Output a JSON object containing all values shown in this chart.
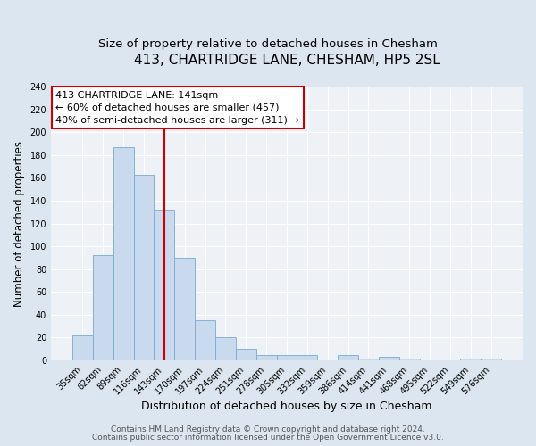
{
  "title": "413, CHARTRIDGE LANE, CHESHAM, HP5 2SL",
  "subtitle": "Size of property relative to detached houses in Chesham",
  "xlabel": "Distribution of detached houses by size in Chesham",
  "ylabel": "Number of detached properties",
  "bar_labels": [
    "35sqm",
    "62sqm",
    "89sqm",
    "116sqm",
    "143sqm",
    "170sqm",
    "197sqm",
    "224sqm",
    "251sqm",
    "278sqm",
    "305sqm",
    "332sqm",
    "359sqm",
    "386sqm",
    "414sqm",
    "441sqm",
    "468sqm",
    "495sqm",
    "522sqm",
    "549sqm",
    "576sqm"
  ],
  "bar_values": [
    22,
    92,
    187,
    163,
    132,
    90,
    35,
    20,
    10,
    5,
    5,
    5,
    0,
    5,
    2,
    3,
    2,
    0,
    0,
    2,
    2
  ],
  "bar_color": "#c9d9ee",
  "bar_edge_color": "#7aaad0",
  "bar_width": 1.0,
  "vline_x": 4,
  "vline_color": "#cc0000",
  "ylim": [
    0,
    240
  ],
  "yticks": [
    0,
    20,
    40,
    60,
    80,
    100,
    120,
    140,
    160,
    180,
    200,
    220,
    240
  ],
  "annotation_title": "413 CHARTRIDGE LANE: 141sqm",
  "annotation_line1": "← 60% of detached houses are smaller (457)",
  "annotation_line2": "40% of semi-detached houses are larger (311) →",
  "annotation_box_color": "#ffffff",
  "annotation_border_color": "#cc0000",
  "bg_color": "#dce6f0",
  "plot_bg_color": "#eef2f7",
  "footer1": "Contains HM Land Registry data © Crown copyright and database right 2024.",
  "footer2": "Contains public sector information licensed under the Open Government Licence v3.0.",
  "title_fontsize": 11,
  "subtitle_fontsize": 9.5,
  "xlabel_fontsize": 9,
  "ylabel_fontsize": 8.5,
  "tick_fontsize": 7,
  "footer_fontsize": 6.5,
  "annotation_fontsize": 8
}
